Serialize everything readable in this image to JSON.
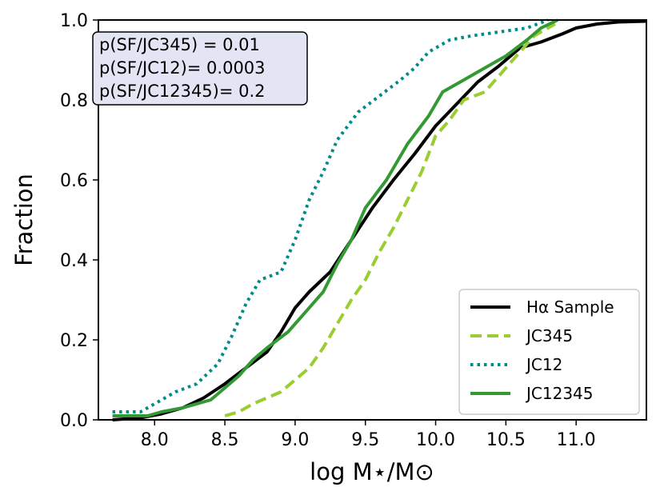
{
  "chart_data": {
    "type": "line",
    "title": "",
    "xlabel": "log M⋆/M⊙",
    "ylabel": "Fraction",
    "xlim": [
      7.6,
      11.5
    ],
    "ylim": [
      0.0,
      1.0
    ],
    "xticks": [
      "8.0",
      "8.5",
      "9.0",
      "9.5",
      "10.0",
      "10.5",
      "11.0"
    ],
    "yticks": [
      "0.0",
      "0.2",
      "0.4",
      "0.6",
      "0.8",
      "1.0"
    ],
    "grid": false,
    "legend_position": "lower-right",
    "annotation": {
      "position": "upper-left",
      "lines": [
        "p(SF/JC345) = 0.01",
        "p(SF/JC12)= 0.0003",
        "p(SF/JC12345)= 0.2"
      ]
    },
    "series": [
      {
        "name": "Hα Sample",
        "color": "#000000",
        "style": "solid",
        "points": [
          [
            7.7,
            0.0
          ],
          [
            7.9,
            0.005
          ],
          [
            8.05,
            0.015
          ],
          [
            8.2,
            0.03
          ],
          [
            8.35,
            0.055
          ],
          [
            8.5,
            0.09
          ],
          [
            8.65,
            0.13
          ],
          [
            8.8,
            0.17
          ],
          [
            8.9,
            0.22
          ],
          [
            9.0,
            0.28
          ],
          [
            9.1,
            0.32
          ],
          [
            9.25,
            0.37
          ],
          [
            9.4,
            0.45
          ],
          [
            9.55,
            0.53
          ],
          [
            9.7,
            0.6
          ],
          [
            9.85,
            0.665
          ],
          [
            10.0,
            0.735
          ],
          [
            10.15,
            0.79
          ],
          [
            10.3,
            0.845
          ],
          [
            10.45,
            0.885
          ],
          [
            10.6,
            0.93
          ],
          [
            10.75,
            0.945
          ],
          [
            10.9,
            0.965
          ],
          [
            11.0,
            0.98
          ],
          [
            11.15,
            0.99
          ],
          [
            11.3,
            0.995
          ],
          [
            11.5,
            0.997
          ]
        ]
      },
      {
        "name": "JC345",
        "color": "#9acd32",
        "style": "dashed",
        "points": [
          [
            8.5,
            0.01
          ],
          [
            8.6,
            0.02
          ],
          [
            8.7,
            0.04
          ],
          [
            8.8,
            0.055
          ],
          [
            8.9,
            0.07
          ],
          [
            9.0,
            0.1
          ],
          [
            9.1,
            0.13
          ],
          [
            9.2,
            0.18
          ],
          [
            9.3,
            0.24
          ],
          [
            9.4,
            0.3
          ],
          [
            9.5,
            0.35
          ],
          [
            9.6,
            0.42
          ],
          [
            9.7,
            0.48
          ],
          [
            9.8,
            0.55
          ],
          [
            9.9,
            0.62
          ],
          [
            10.0,
            0.71
          ],
          [
            10.1,
            0.75
          ],
          [
            10.2,
            0.8
          ],
          [
            10.35,
            0.82
          ],
          [
            10.45,
            0.86
          ],
          [
            10.6,
            0.92
          ],
          [
            10.7,
            0.96
          ],
          [
            10.85,
            0.99
          ]
        ]
      },
      {
        "name": "JC12",
        "color": "#008b8b",
        "style": "dotted",
        "points": [
          [
            7.7,
            0.02
          ],
          [
            7.9,
            0.02
          ],
          [
            8.0,
            0.04
          ],
          [
            8.15,
            0.07
          ],
          [
            8.3,
            0.09
          ],
          [
            8.45,
            0.14
          ],
          [
            8.55,
            0.21
          ],
          [
            8.65,
            0.29
          ],
          [
            8.75,
            0.35
          ],
          [
            8.9,
            0.37
          ],
          [
            9.0,
            0.45
          ],
          [
            9.1,
            0.55
          ],
          [
            9.2,
            0.62
          ],
          [
            9.3,
            0.7
          ],
          [
            9.45,
            0.77
          ],
          [
            9.6,
            0.81
          ],
          [
            9.75,
            0.85
          ],
          [
            9.85,
            0.88
          ],
          [
            9.95,
            0.92
          ],
          [
            10.1,
            0.95
          ],
          [
            10.25,
            0.96
          ],
          [
            10.45,
            0.97
          ],
          [
            10.65,
            0.98
          ],
          [
            10.8,
            1.0
          ]
        ]
      },
      {
        "name": "JC12345",
        "color": "#339933",
        "style": "solid",
        "points": [
          [
            7.7,
            0.01
          ],
          [
            7.95,
            0.01
          ],
          [
            8.05,
            0.02
          ],
          [
            8.2,
            0.03
          ],
          [
            8.4,
            0.05
          ],
          [
            8.5,
            0.08
          ],
          [
            8.6,
            0.11
          ],
          [
            8.7,
            0.15
          ],
          [
            8.8,
            0.18
          ],
          [
            8.95,
            0.22
          ],
          [
            9.05,
            0.26
          ],
          [
            9.2,
            0.32
          ],
          [
            9.3,
            0.39
          ],
          [
            9.4,
            0.45
          ],
          [
            9.5,
            0.53
          ],
          [
            9.65,
            0.6
          ],
          [
            9.8,
            0.69
          ],
          [
            9.95,
            0.76
          ],
          [
            10.05,
            0.82
          ],
          [
            10.2,
            0.85
          ],
          [
            10.35,
            0.88
          ],
          [
            10.5,
            0.91
          ],
          [
            10.65,
            0.95
          ],
          [
            10.75,
            0.98
          ],
          [
            10.87,
            1.0
          ]
        ]
      }
    ]
  }
}
